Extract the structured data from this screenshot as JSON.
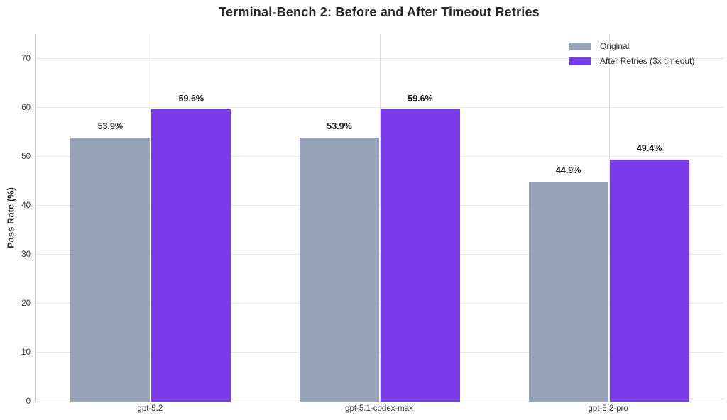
{
  "chart_data": {
    "type": "bar",
    "title": "Terminal-Bench 2: Before and After Timeout Retries",
    "xlabel": "",
    "ylabel": "Pass Rate (%)",
    "categories": [
      "gpt-5.2",
      "gpt-5.1-codex-max",
      "gpt-5.2-pro"
    ],
    "series": [
      {
        "name": "Original",
        "color": "#97a3b8",
        "values": [
          53.9,
          53.9,
          44.9
        ],
        "labels": [
          "53.9%",
          "53.9%",
          "44.9%"
        ]
      },
      {
        "name": "After Retries (3x timeout)",
        "color": "#7a3be8",
        "values": [
          59.6,
          59.6,
          49.4
        ],
        "labels": [
          "59.6%",
          "59.6%",
          "49.4%"
        ]
      }
    ],
    "ylim": [
      0,
      75
    ],
    "yticks": [
      0,
      10,
      20,
      30,
      40,
      50,
      60,
      70
    ],
    "grid": "horizontal gridlines at y ticks, vertical gridlines at category centers",
    "legend_position": "upper right"
  }
}
